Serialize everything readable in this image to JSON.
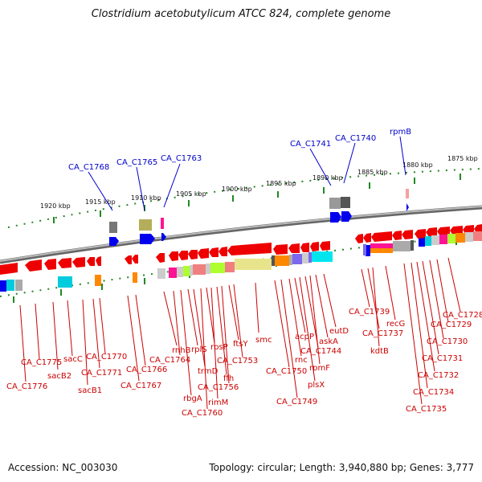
{
  "title": "Clostridium acetobutylicum ATCC 824, complete genome",
  "footer": {
    "accession": "Accession: NC_003030",
    "summary": "Topology: circular; Length: 3,940,880 bp; Genes: 3,777"
  },
  "colors": {
    "forward_label": "#0000cc",
    "reverse_label": "#cc0000",
    "scale_ticks": "#228822",
    "backbone": "#888888"
  },
  "scale_labels": [
    "1920 kbp",
    "1915 kbp",
    "1910 kbp",
    "1905 kbp",
    "1900 kbp",
    "1895 kbp",
    "1890 kbp",
    "1885 kbp",
    "1880 kbp",
    "1875 kbp"
  ],
  "forward_labels": [
    "CA_C1768",
    "CA_C1765",
    "CA_C1763",
    "CA_C1741",
    "CA_C1740",
    "rpmB"
  ],
  "reverse_labels": [
    "CA_C1776",
    "CA_C1775",
    "sacB2",
    "sacC",
    "sacB1",
    "CA_C1771",
    "CA_C1770",
    "CA_C1767",
    "CA_C1766",
    "rnhB",
    "CA_C1764",
    "rbgA",
    "rplS",
    "trmD",
    "CA_C1760",
    "rpsP",
    "rimM",
    "ffh",
    "CA_C1756",
    "ftsY",
    "CA_C1753",
    "smc",
    "CA_C1750",
    "CA_C1749",
    "rnc",
    "acpP",
    "plsX",
    "CA_C1744",
    "rpmF",
    "askA",
    "eutD",
    "CA_C1739",
    "CA_C1737",
    "kdtB",
    "recG",
    "CA_C1735",
    "CA_C1734",
    "CA_C1732",
    "CA_C1731",
    "CA_C1730",
    "CA_C1729",
    "CA_C1728"
  ]
}
